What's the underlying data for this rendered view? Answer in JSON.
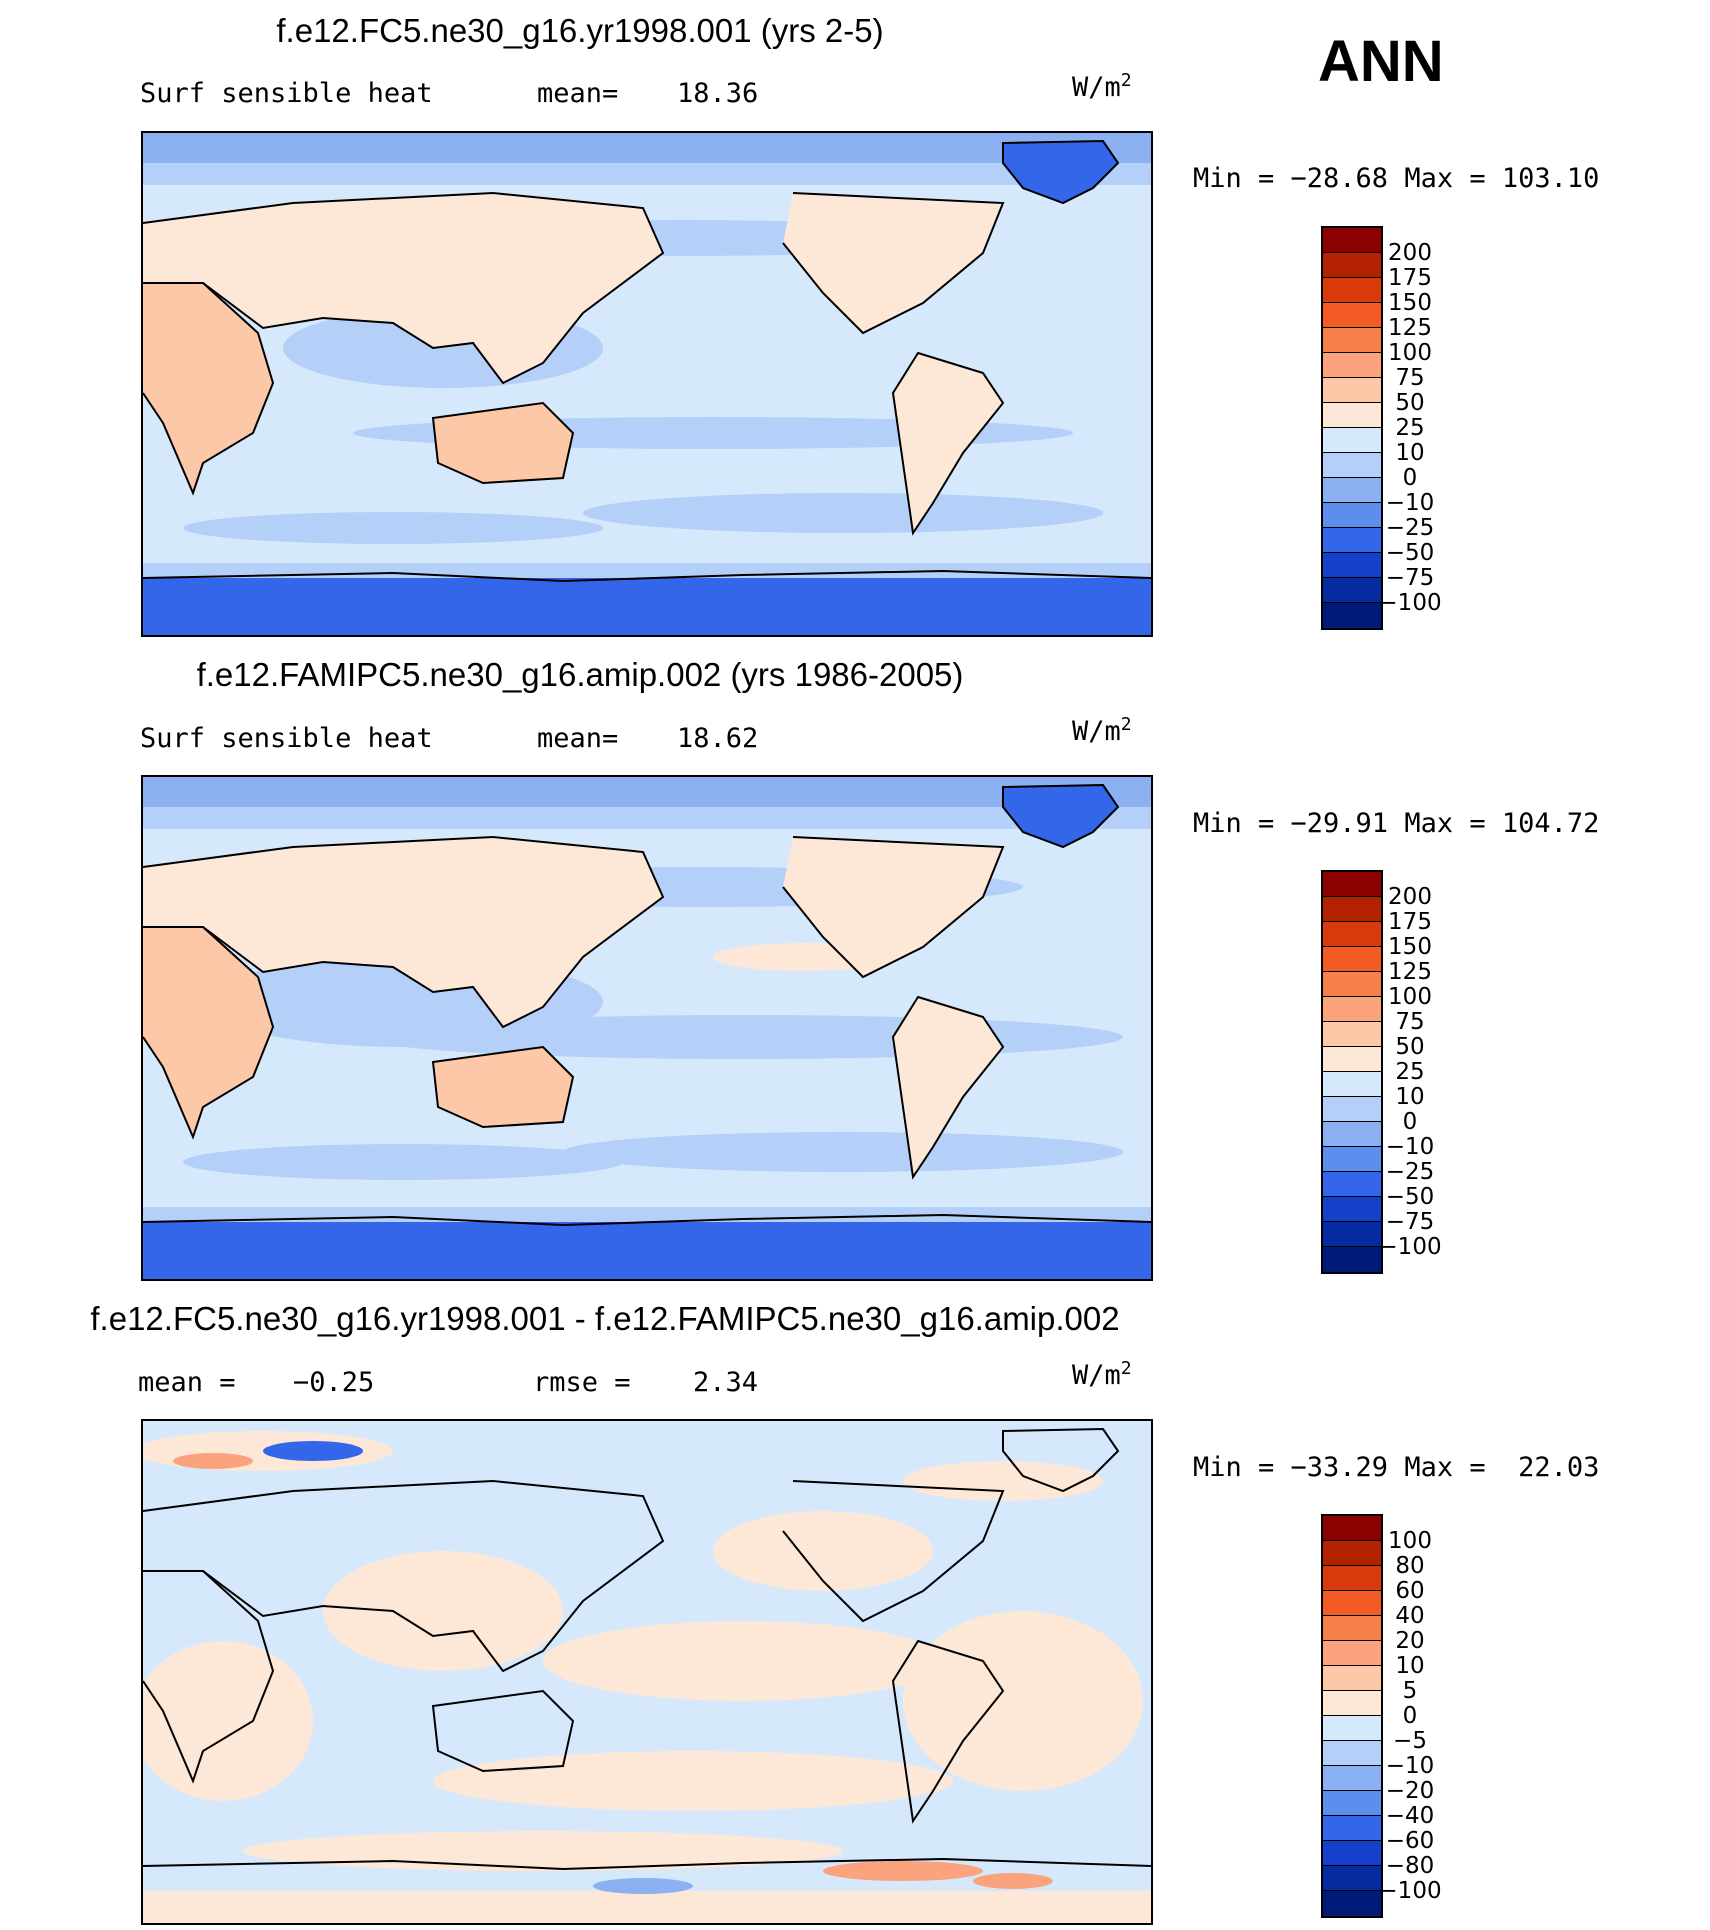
{
  "season_label": "ANN",
  "panels": [
    {
      "title": "f.e12.FC5.ne30_g16.yr1998.001 (yrs 2-5)",
      "left_text": "Surf sensible heat",
      "middle_text": "mean=",
      "middle_value": "18.36",
      "units": "W/m",
      "units_exp": "2",
      "minmax": "Min = −28.68 Max = 103.10",
      "colorbar": {
        "labels": [
          "200",
          "175",
          "150",
          "125",
          "100",
          "75",
          "50",
          "25",
          "10",
          "0",
          "−10",
          "−25",
          "−50",
          "−75",
          "−100"
        ],
        "colors": [
          "#8b0000",
          "#b22200",
          "#d93a0c",
          "#f25c24",
          "#f77f4a",
          "#fba37d",
          "#fcc8a8",
          "#fde8d8",
          "#d6e8fb",
          "#b4d0f8",
          "#8bb1f3",
          "#5d8ded",
          "#3366e8",
          "#1440cc",
          "#062aa0",
          "#001a78"
        ]
      }
    },
    {
      "title": "f.e12.FAMIPC5.ne30_g16.amip.002 (yrs 1986-2005)",
      "left_text": "Surf sensible heat",
      "middle_text": "mean=",
      "middle_value": "18.62",
      "units": "W/m",
      "units_exp": "2",
      "minmax": "Min = −29.91 Max = 104.72",
      "colorbar": {
        "labels": [
          "200",
          "175",
          "150",
          "125",
          "100",
          "75",
          "50",
          "25",
          "10",
          "0",
          "−10",
          "−25",
          "−50",
          "−75",
          "−100"
        ],
        "colors": [
          "#8b0000",
          "#b22200",
          "#d93a0c",
          "#f25c24",
          "#f77f4a",
          "#fba37d",
          "#fcc8a8",
          "#fde8d8",
          "#d6e8fb",
          "#b4d0f8",
          "#8bb1f3",
          "#5d8ded",
          "#3366e8",
          "#1440cc",
          "#062aa0",
          "#001a78"
        ]
      }
    },
    {
      "title": "f.e12.FC5.ne30_g16.yr1998.001 - f.e12.FAMIPC5.ne30_g16.amip.002",
      "left_text": "mean =",
      "left_value": "−0.25",
      "middle_text": "rmse =",
      "middle_value": "2.34",
      "units": "W/m",
      "units_exp": "2",
      "minmax": "Min = −33.29 Max =  22.03",
      "colorbar": {
        "labels": [
          "100",
          "80",
          "60",
          "40",
          "20",
          "10",
          "5",
          "0",
          "−5",
          "−10",
          "−20",
          "−40",
          "−60",
          "−80",
          "−100"
        ],
        "colors": [
          "#8b0000",
          "#b22200",
          "#d93a0c",
          "#f25c24",
          "#f77f4a",
          "#fba37d",
          "#fcc8a8",
          "#fde8d8",
          "#d6e8fb",
          "#b4d0f8",
          "#8bb1f3",
          "#5d8ded",
          "#3366e8",
          "#1440cc",
          "#062aa0",
          "#001a78"
        ]
      }
    }
  ]
}
